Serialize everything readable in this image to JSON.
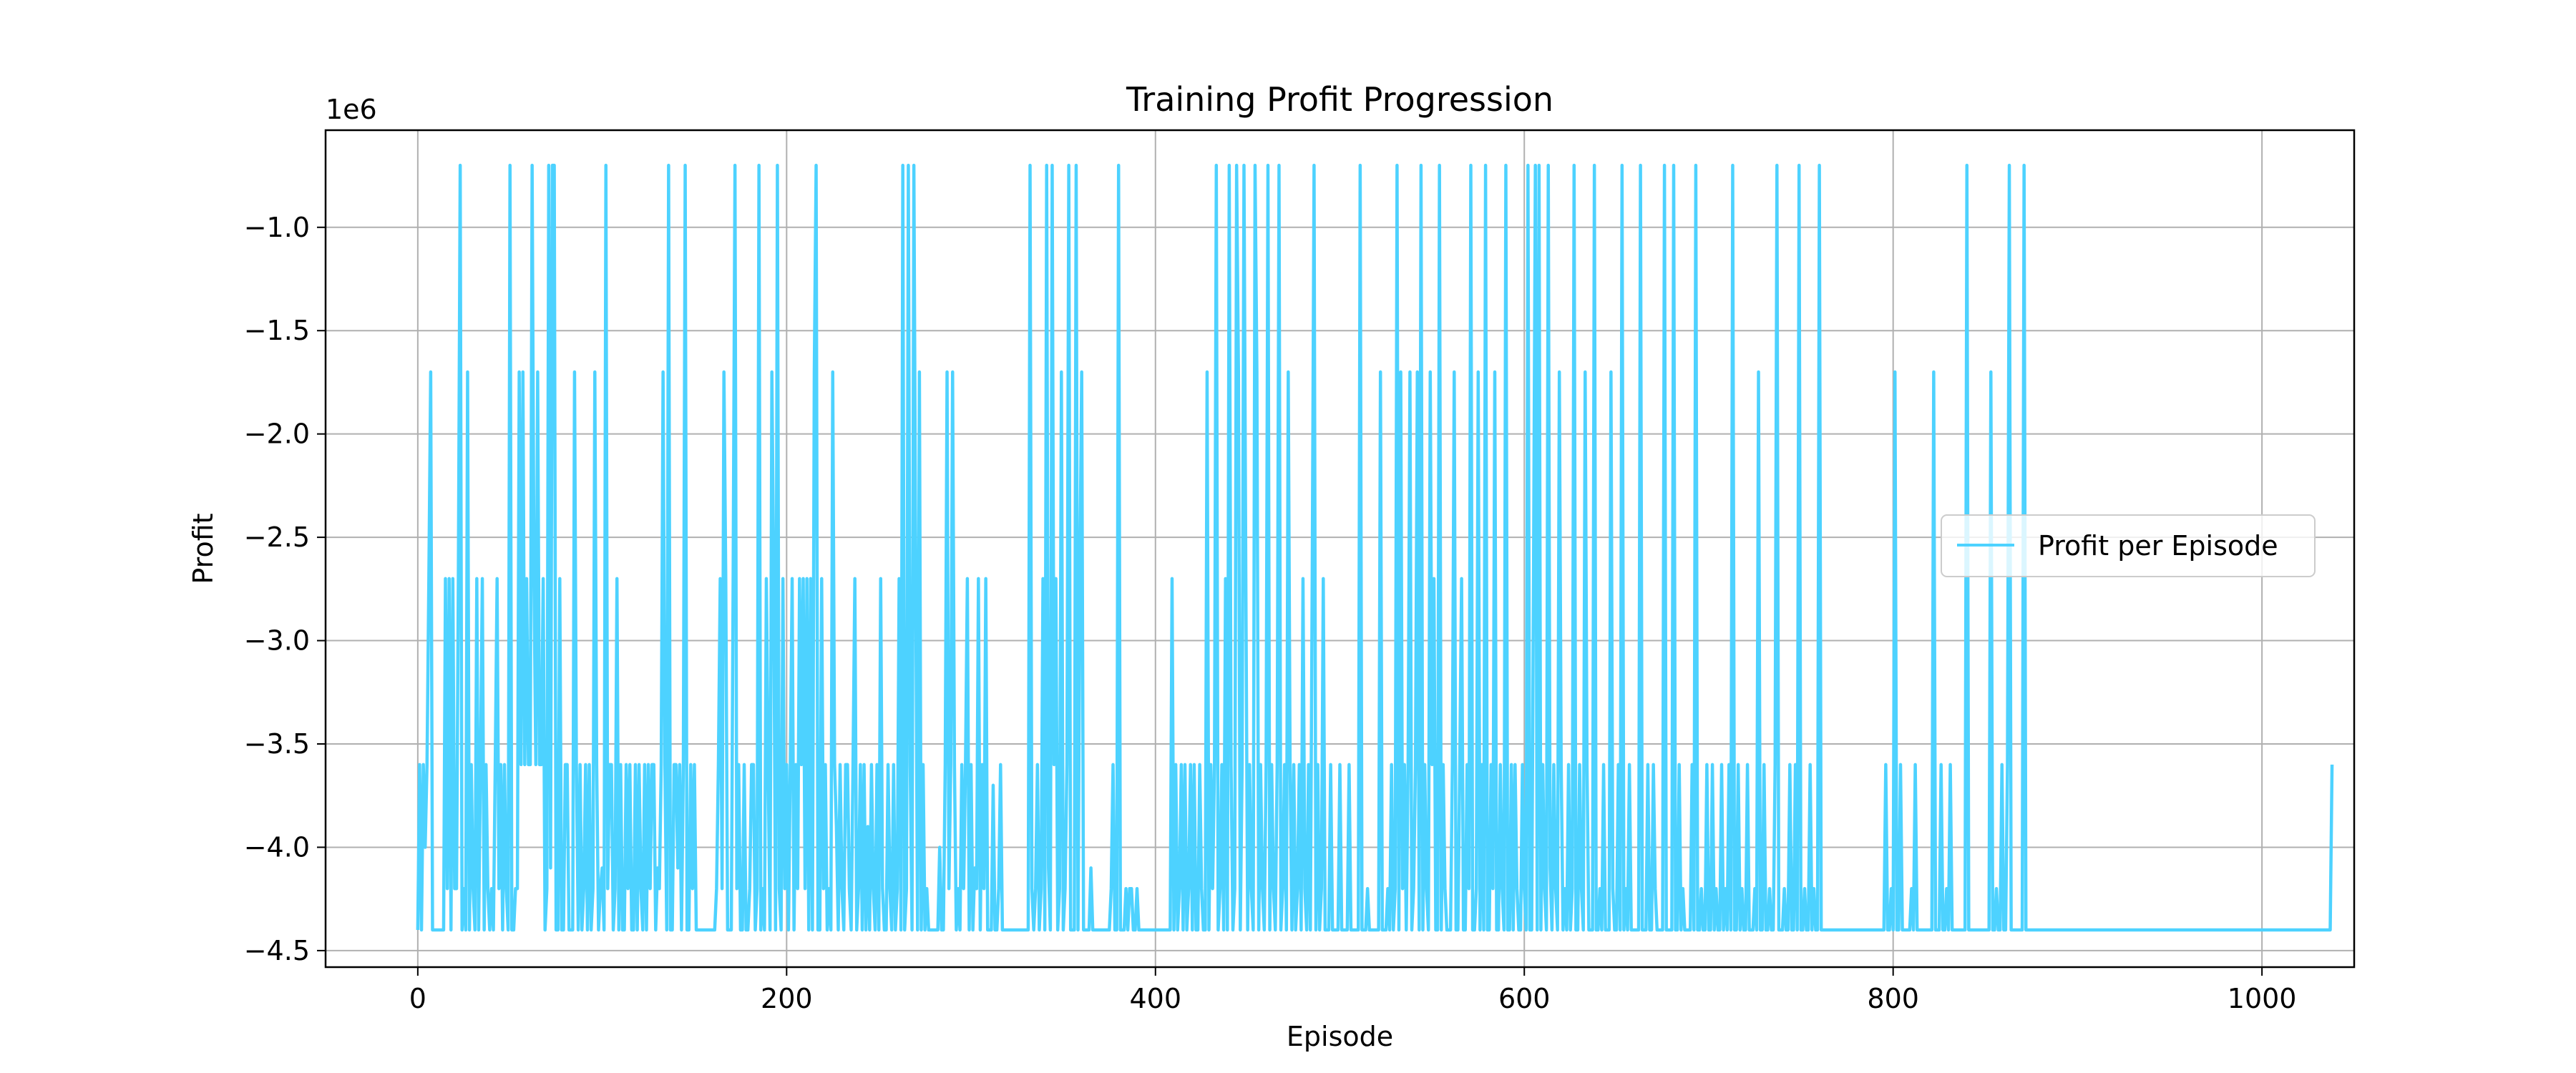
{
  "chart_data": {
    "type": "line",
    "title": "Training Profit Progression",
    "xlabel": "Episode",
    "ylabel": "Profit",
    "y_offset_label": "1e6",
    "xlim": [
      -50,
      1050
    ],
    "ylim": [
      -4.58,
      -0.53
    ],
    "y_unit_multiplier": 1000000,
    "xticks": [
      0,
      200,
      400,
      600,
      800,
      1000
    ],
    "yticks": [
      -1.0,
      -1.5,
      -2.0,
      -2.5,
      -3.0,
      -3.5,
      -4.0,
      -4.5
    ],
    "xtick_labels": [
      "0",
      "200",
      "400",
      "600",
      "800",
      "1000"
    ],
    "ytick_labels": [
      "−1.0",
      "−1.5",
      "−2.0",
      "−2.5",
      "−3.0",
      "−3.5",
      "−4.0",
      "−4.5"
    ],
    "grid": true,
    "legend_position": "center-right",
    "series": [
      {
        "name": "Profit per Episode",
        "color": "#4dd2ff",
        "x_start": 0,
        "x_step": 1,
        "values": [
          -4.4,
          -3.6,
          -4.4,
          -3.6,
          -4.0,
          -3.6,
          -2.7,
          -1.7,
          -4.4,
          -4.4,
          -4.4,
          -4.4,
          -4.4,
          -4.4,
          -4.4,
          -2.7,
          -4.2,
          -2.7,
          -4.4,
          -2.7,
          -4.2,
          -4.2,
          -2.7,
          -0.7,
          -4.4,
          -4.2,
          -4.4,
          -1.7,
          -4.4,
          -3.6,
          -4.2,
          -4.4,
          -2.7,
          -4.4,
          -3.6,
          -2.7,
          -4.4,
          -3.6,
          -4.2,
          -4.4,
          -4.2,
          -4.4,
          -3.6,
          -2.7,
          -4.2,
          -3.6,
          -4.4,
          -3.6,
          -4.2,
          -4.4,
          -0.7,
          -4.4,
          -4.4,
          -4.2,
          -4.2,
          -1.7,
          -3.6,
          -1.7,
          -3.6,
          -2.7,
          -3.6,
          -3.6,
          -0.7,
          -2.7,
          -3.6,
          -1.7,
          -3.6,
          -3.6,
          -2.7,
          -4.4,
          -4.2,
          -0.7,
          -4.1,
          -0.7,
          -0.7,
          -4.4,
          -4.4,
          -2.7,
          -4.4,
          -4.4,
          -3.6,
          -3.6,
          -4.4,
          -4.4,
          -4.4,
          -1.7,
          -3.6,
          -4.4,
          -3.6,
          -4.4,
          -4.2,
          -3.6,
          -4.4,
          -3.6,
          -4.4,
          -4.2,
          -1.7,
          -3.6,
          -4.4,
          -4.2,
          -4.1,
          -4.4,
          -0.7,
          -4.2,
          -3.6,
          -3.6,
          -4.4,
          -4.2,
          -2.7,
          -4.4,
          -3.6,
          -4.4,
          -4.4,
          -3.6,
          -4.2,
          -3.6,
          -4.4,
          -4.4,
          -3.6,
          -4.4,
          -3.6,
          -4.2,
          -4.4,
          -3.6,
          -4.4,
          -3.6,
          -4.2,
          -3.6,
          -3.6,
          -4.4,
          -4.1,
          -4.2,
          -3.6,
          -1.7,
          -3.6,
          -4.4,
          -0.7,
          -4.4,
          -4.4,
          -3.6,
          -3.6,
          -4.1,
          -3.6,
          -4.4,
          -3.6,
          -0.7,
          -4.4,
          -4.4,
          -3.6,
          -4.2,
          -3.6,
          -4.4,
          -4.4,
          -4.4,
          -4.4,
          -4.4,
          -4.4,
          -4.4,
          -4.4,
          -4.4,
          -4.4,
          -4.4,
          -4.2,
          -3.6,
          -2.7,
          -4.2,
          -1.7,
          -2.7,
          -4.4,
          -4.4,
          -4.4,
          -2.7,
          -0.7,
          -4.2,
          -3.6,
          -4.4,
          -4.4,
          -3.6,
          -4.4,
          -4.4,
          -4.2,
          -3.6,
          -3.6,
          -4.4,
          -4.2,
          -0.7,
          -4.4,
          -4.2,
          -4.4,
          -2.7,
          -3.6,
          -4.4,
          -1.7,
          -2.7,
          -4.4,
          -0.7,
          -4.2,
          -4.4,
          -2.7,
          -4.2,
          -3.6,
          -4.4,
          -3.6,
          -2.7,
          -4.4,
          -3.6,
          -4.2,
          -2.7,
          -3.6,
          -2.7,
          -4.2,
          -2.7,
          -4.4,
          -2.7,
          -4.4,
          -1.7,
          -0.7,
          -4.4,
          -4.4,
          -2.7,
          -4.2,
          -3.6,
          -4.4,
          -4.2,
          -4.4,
          -1.7,
          -3.6,
          -3.9,
          -4.4,
          -3.6,
          -4.2,
          -4.4,
          -3.6,
          -3.6,
          -4.2,
          -4.4,
          -3.6,
          -2.7,
          -4.4,
          -4.2,
          -3.6,
          -4.4,
          -3.6,
          -4.4,
          -3.9,
          -4.4,
          -3.6,
          -4.2,
          -4.4,
          -3.6,
          -4.4,
          -2.7,
          -4.2,
          -4.4,
          -4.4,
          -3.6,
          -4.2,
          -4.4,
          -3.6,
          -4.4,
          -4.2,
          -2.7,
          -4.4,
          -0.7,
          -4.4,
          -4.2,
          -0.7,
          -3.6,
          -4.4,
          -0.7,
          -2.7,
          -4.4,
          -1.7,
          -4.4,
          -3.6,
          -4.4,
          -4.2,
          -4.4,
          -4.4,
          -4.4,
          -4.4,
          -4.4,
          -4.4,
          -4.0,
          -4.4,
          -4.4,
          -3.6,
          -1.7,
          -4.2,
          -3.6,
          -1.7,
          -3.6,
          -4.4,
          -4.2,
          -4.4,
          -3.6,
          -4.2,
          -3.6,
          -2.7,
          -4.4,
          -3.6,
          -4.4,
          -4.1,
          -4.2,
          -2.7,
          -4.4,
          -3.6,
          -4.2,
          -2.7,
          -4.4,
          -4.4,
          -4.4,
          -3.7,
          -4.4,
          -4.4,
          -4.2,
          -3.6,
          -4.4,
          -4.4,
          -4.4,
          -4.4,
          -4.4,
          -4.4,
          -4.4,
          -4.4,
          -4.4,
          -4.4,
          -4.4,
          -4.4,
          -4.4,
          -4.4,
          -4.4,
          -0.7,
          -4.2,
          -4.4,
          -4.2,
          -3.6,
          -4.4,
          -4.2,
          -2.7,
          -4.4,
          -0.7,
          -4.1,
          -4.4,
          -0.7,
          -3.6,
          -2.7,
          -4.4,
          -4.2,
          -1.7,
          -4.4,
          -4.2,
          -3.6,
          -0.7,
          -4.4,
          -4.4,
          -4.4,
          -0.7,
          -4.4,
          -2.7,
          -1.7,
          -4.4,
          -4.4,
          -4.4,
          -4.4,
          -4.1,
          -4.4,
          -4.4,
          -4.4,
          -4.4,
          -4.4,
          -4.4,
          -4.4,
          -4.4,
          -4.4,
          -4.4,
          -4.2,
          -3.6,
          -4.4,
          -4.4,
          -0.7,
          -4.4,
          -4.4,
          -4.4,
          -4.2,
          -4.4,
          -4.2,
          -4.2,
          -4.4,
          -4.4,
          -4.2,
          -4.4,
          -4.4,
          -4.4,
          -4.4,
          -4.4,
          -4.4,
          -4.4,
          -4.4,
          -4.4,
          -4.4,
          -4.4,
          -4.4,
          -4.4,
          -4.4,
          -4.4,
          -4.4,
          -4.4,
          -4.4,
          -2.7,
          -4.4,
          -3.6,
          -4.4,
          -4.2,
          -3.6,
          -4.4,
          -3.6,
          -4.4,
          -4.2,
          -3.6,
          -4.4,
          -3.6,
          -4.4,
          -4.4,
          -3.6,
          -4.2,
          -4.4,
          -4.4,
          -1.7,
          -4.4,
          -3.6,
          -4.2,
          -3.6,
          -0.7,
          -4.4,
          -4.2,
          -3.6,
          -4.4,
          -2.7,
          -4.4,
          -0.7,
          -3.6,
          -4.4,
          -4.2,
          -0.7,
          -1.7,
          -4.4,
          -3.6,
          -0.7,
          -2.7,
          -4.4,
          -3.6,
          -4.2,
          -4.4,
          -0.7,
          -1.7,
          -4.4,
          -3.6,
          -4.2,
          -4.4,
          -3.6,
          -0.7,
          -4.4,
          -3.6,
          -4.2,
          -4.4,
          -3.6,
          -0.7,
          -4.4,
          -4.2,
          -3.6,
          -4.4,
          -1.7,
          -3.6,
          -4.4,
          -3.6,
          -4.4,
          -4.2,
          -3.6,
          -4.4,
          -2.7,
          -4.2,
          -4.4,
          -3.6,
          -4.4,
          -2.7,
          -0.7,
          -4.4,
          -3.6,
          -4.4,
          -4.2,
          -2.7,
          -4.4,
          -4.4,
          -4.4,
          -3.6,
          -4.4,
          -4.4,
          -4.4,
          -4.4,
          -3.6,
          -4.4,
          -4.4,
          -4.4,
          -4.4,
          -3.6,
          -4.4,
          -4.4,
          -4.4,
          -4.4,
          -4.4,
          -0.7,
          -4.4,
          -4.4,
          -4.4,
          -4.2,
          -4.4,
          -4.4,
          -4.4,
          -4.4,
          -4.4,
          -4.4,
          -1.7,
          -4.4,
          -4.4,
          -4.4,
          -4.2,
          -4.4,
          -3.6,
          -4.4,
          -4.2,
          -0.7,
          -4.4,
          -1.7,
          -4.2,
          -3.6,
          -4.4,
          -3.6,
          -1.7,
          -4.4,
          -4.2,
          -3.6,
          -1.7,
          -4.4,
          -0.7,
          -4.4,
          -3.6,
          -4.2,
          -4.4,
          -1.7,
          -3.6,
          -2.7,
          -4.4,
          -4.4,
          -0.7,
          -4.4,
          -3.6,
          -4.2,
          -4.4,
          -4.4,
          -4.4,
          -3.6,
          -1.7,
          -4.4,
          -4.4,
          -3.6,
          -2.7,
          -4.4,
          -4.4,
          -3.6,
          -4.2,
          -0.7,
          -4.4,
          -4.4,
          -4.2,
          -1.7,
          -4.4,
          -3.6,
          -4.4,
          -0.7,
          -4.4,
          -4.4,
          -3.6,
          -4.2,
          -1.7,
          -4.4,
          -4.4,
          -3.6,
          -4.2,
          -4.4,
          -0.7,
          -4.4,
          -4.4,
          -3.6,
          -4.4,
          -3.6,
          -4.2,
          -4.4,
          -4.4,
          -3.6,
          -4.2,
          -4.4,
          -0.7,
          -4.4,
          -4.4,
          -2.7,
          -0.7,
          -4.4,
          -0.7,
          -4.4,
          -3.6,
          -4.2,
          -4.4,
          -0.7,
          -4.1,
          -4.4,
          -3.6,
          -4.2,
          -4.4,
          -1.7,
          -3.6,
          -4.4,
          -4.2,
          -4.4,
          -3.6,
          -4.4,
          -4.2,
          -0.7,
          -4.4,
          -4.4,
          -3.6,
          -4.2,
          -4.4,
          -1.7,
          -3.6,
          -4.4,
          -4.4,
          -4.4,
          -0.7,
          -4.4,
          -4.4,
          -4.2,
          -4.4,
          -3.6,
          -4.4,
          -4.4,
          -4.4,
          -1.7,
          -4.2,
          -4.4,
          -4.4,
          -3.6,
          -4.4,
          -0.7,
          -4.4,
          -4.2,
          -4.4,
          -3.6,
          -4.4,
          -4.4,
          -4.4,
          -4.4,
          -4.4,
          -0.7,
          -4.4,
          -4.4,
          -4.4,
          -3.6,
          -4.4,
          -4.4,
          -3.6,
          -4.2,
          -4.4,
          -4.4,
          -4.4,
          -4.4,
          -0.7,
          -4.4,
          -4.4,
          -4.4,
          -4.4,
          -0.7,
          -4.4,
          -4.4,
          -3.6,
          -4.4,
          -4.2,
          -4.4,
          -4.4,
          -4.4,
          -4.4,
          -3.6,
          -4.4,
          -0.7,
          -4.4,
          -4.4,
          -4.2,
          -4.4,
          -4.4,
          -3.6,
          -4.4,
          -4.4,
          -3.6,
          -4.4,
          -4.2,
          -4.4,
          -4.4,
          -3.6,
          -4.4,
          -4.2,
          -4.4,
          -3.6,
          -4.4,
          -0.7,
          -4.4,
          -4.4,
          -3.6,
          -4.4,
          -4.2,
          -4.4,
          -4.4,
          -3.6,
          -4.4,
          -4.4,
          -4.4,
          -4.2,
          -4.4,
          -1.7,
          -4.4,
          -4.4,
          -3.6,
          -4.4,
          -4.4,
          -4.2,
          -4.4,
          -4.4,
          -3.6,
          -0.7,
          -4.4,
          -4.4,
          -4.4,
          -4.2,
          -4.4,
          -4.4,
          -3.6,
          -4.4,
          -4.4,
          -3.6,
          -4.4,
          -0.7,
          -4.4,
          -4.4,
          -4.2,
          -4.4,
          -4.4,
          -3.6,
          -4.4,
          -4.2,
          -4.4,
          -4.4,
          -0.7,
          -4.4,
          -4.4,
          -4.4,
          -4.4,
          -4.4,
          -4.4,
          -4.4,
          -4.4,
          -4.4,
          -4.4,
          -4.4,
          -4.4,
          -4.4,
          -4.4,
          -4.4,
          -4.4,
          -4.4,
          -4.4,
          -4.4,
          -4.4,
          -4.4,
          -4.4,
          -4.4,
          -4.4,
          -4.4,
          -4.4,
          -4.4,
          -4.4,
          -4.4,
          -4.4,
          -4.4,
          -4.4,
          -4.4,
          -4.4,
          -4.4,
          -3.6,
          -4.4,
          -4.4,
          -4.2,
          -4.4,
          -1.7,
          -4.4,
          -4.4,
          -3.6,
          -4.4,
          -4.4,
          -4.4,
          -4.4,
          -4.4,
          -4.2,
          -4.4,
          -3.6,
          -4.4,
          -4.4,
          -4.4,
          -4.4,
          -4.4,
          -4.4,
          -4.4,
          -4.4,
          -4.4,
          -1.7,
          -4.4,
          -4.4,
          -4.4,
          -3.6,
          -4.4,
          -4.4,
          -4.2,
          -4.4,
          -3.6,
          -4.4,
          -4.4,
          -4.4,
          -4.4,
          -4.4,
          -4.4,
          -4.4,
          -4.4,
          -0.7,
          -4.4,
          -4.4,
          -4.4,
          -4.4,
          -4.4,
          -4.4,
          -4.4,
          -4.4,
          -4.4,
          -4.4,
          -4.4,
          -4.4,
          -1.7,
          -4.4,
          -4.4,
          -4.2,
          -4.4,
          -4.4,
          -3.6,
          -4.4,
          -4.4,
          -3.6,
          -0.7,
          -4.4,
          -4.4,
          -4.4,
          -4.4,
          -4.4,
          -4.4,
          -4.4,
          -0.7,
          -4.4,
          -4.4,
          -4.4,
          -4.4,
          -4.4,
          -4.4,
          -4.4,
          -4.4,
          -4.4,
          -4.4,
          -4.4,
          -4.4,
          -4.4,
          -4.4,
          -4.4,
          -4.4,
          -4.4,
          -4.4,
          -4.4,
          -4.4,
          -4.4,
          -4.4,
          -4.4,
          -4.4,
          -4.4,
          -4.4,
          -4.4,
          -4.4,
          -4.4,
          -4.4,
          -4.4,
          -4.4,
          -4.4,
          -4.4,
          -4.4,
          -4.4,
          -4.4,
          -4.4,
          -4.4,
          -4.4,
          -4.4,
          -4.4,
          -4.4,
          -4.4,
          -4.4,
          -4.4,
          -4.4,
          -4.4,
          -4.4,
          -4.4,
          -4.4,
          -4.4,
          -4.4,
          -4.4,
          -4.4,
          -4.4,
          -4.4,
          -4.4,
          -4.4,
          -4.4,
          -4.4,
          -4.4,
          -4.4,
          -4.4,
          -4.4,
          -4.4,
          -4.4,
          -4.4,
          -4.4,
          -4.4,
          -4.4,
          -4.4,
          -4.4,
          -4.4,
          -4.4,
          -4.4,
          -4.4,
          -4.4,
          -4.4,
          -4.4,
          -4.4,
          -4.4,
          -4.4,
          -4.4,
          -4.4,
          -4.4,
          -4.4,
          -4.4,
          -4.4,
          -4.4,
          -4.4,
          -4.4,
          -4.4,
          -4.4,
          -4.4,
          -4.4,
          -4.4,
          -4.4,
          -4.4,
          -4.4,
          -4.4,
          -4.4,
          -4.4,
          -4.4,
          -4.4,
          -4.4,
          -4.4,
          -4.4,
          -4.4,
          -4.4,
          -4.4,
          -4.4,
          -4.4,
          -4.4,
          -4.4,
          -4.4,
          -4.4,
          -4.4,
          -4.4,
          -4.4,
          -4.4,
          -4.4,
          -4.4,
          -4.4,
          -4.4,
          -4.4,
          -4.4,
          -4.4,
          -4.4,
          -4.4,
          -4.4,
          -4.4,
          -4.4,
          -4.4,
          -4.4,
          -4.4,
          -4.4,
          -4.4,
          -4.4,
          -4.4,
          -4.4,
          -4.4,
          -4.4,
          -4.4,
          -4.4,
          -4.4,
          -4.4,
          -4.4,
          -4.4,
          -4.4,
          -4.4,
          -4.4,
          -4.4,
          -4.4,
          -4.4,
          -4.4,
          -4.4,
          -4.4,
          -4.4,
          -4.4,
          -4.4,
          -4.4,
          -4.4,
          -4.4,
          -4.4,
          -4.4,
          -3.6
        ]
      }
    ]
  }
}
